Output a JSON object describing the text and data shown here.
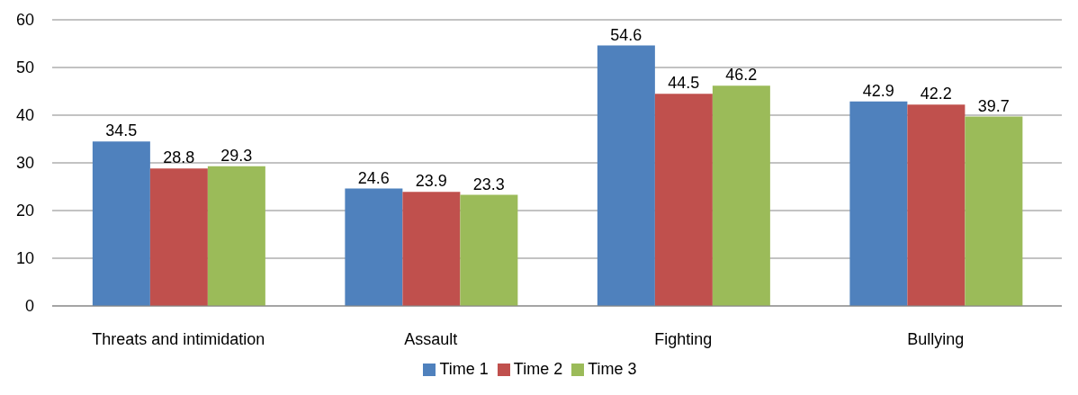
{
  "chart_data": {
    "type": "bar",
    "categories": [
      "Threats and intimidation",
      "Assault",
      "Fighting",
      "Bullying"
    ],
    "series": [
      {
        "name": "Time 1",
        "color": "#4f81bd",
        "values": [
          34.5,
          24.6,
          54.6,
          42.9
        ]
      },
      {
        "name": "Time 2",
        "color": "#c0504d",
        "values": [
          28.8,
          23.9,
          44.5,
          42.2
        ]
      },
      {
        "name": "Time 3",
        "color": "#9bbb59",
        "values": [
          29.3,
          23.3,
          46.2,
          39.7
        ]
      }
    ],
    "ylim": [
      0,
      60
    ],
    "yticks": [
      0,
      10,
      20,
      30,
      40,
      50,
      60
    ],
    "grid": "y",
    "legend": "bottom",
    "data_labels": true
  }
}
